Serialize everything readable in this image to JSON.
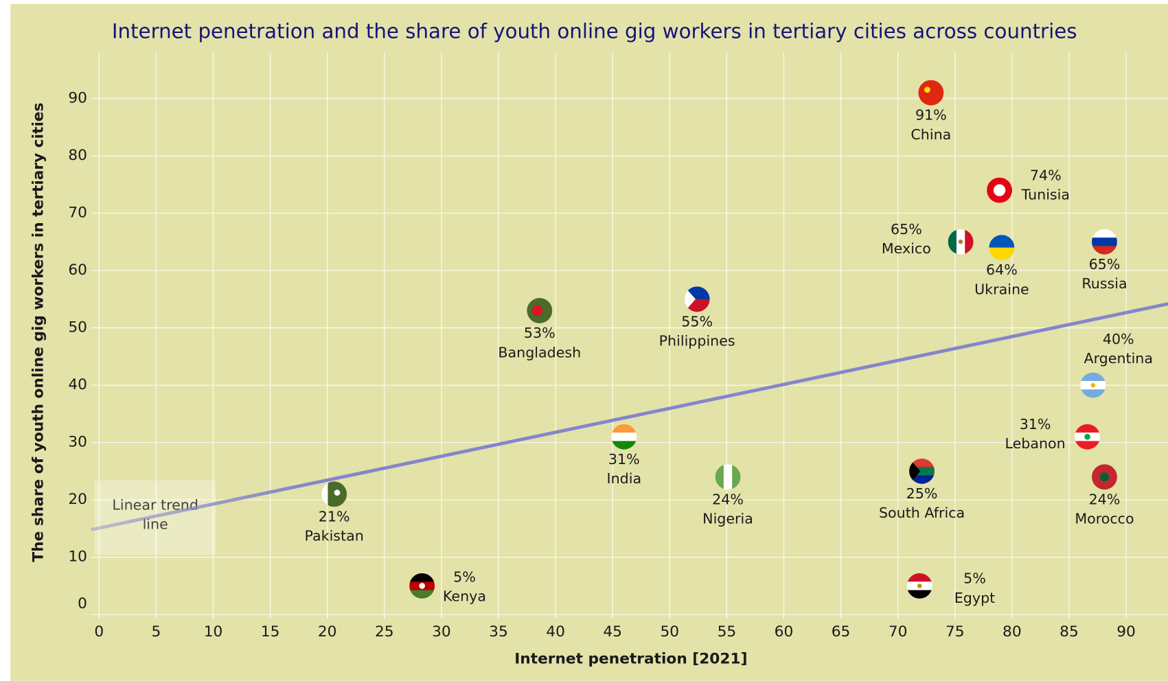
{
  "chart_data": {
    "type": "scatter",
    "title": "Internet penetration and the share of youth online gig workers in tertiary cities across countries",
    "xlabel": "Internet penetration [2021]",
    "ylabel": "The share of youth online gig workers in tertiary cities",
    "labels": [
      "China",
      "Tunisia",
      "Mexico",
      "Ukraine",
      "Russia",
      "Bangladesh",
      "Philippines",
      "Argentina",
      "Lebanon",
      "Morocco",
      "India",
      "Nigeria",
      "South Africa",
      "Pakistan",
      "Kenya",
      "Egypt"
    ],
    "x": [
      72.9,
      78.9,
      75.5,
      79.1,
      88.1,
      38.6,
      52.4,
      87.1,
      86.6,
      88.1,
      46.0,
      55.1,
      72.1,
      20.6,
      28.3,
      71.9
    ],
    "values": [
      91,
      74,
      65,
      64,
      65,
      53,
      55,
      40,
      31,
      24,
      31,
      24,
      25,
      21,
      5,
      5
    ],
    "value_labels": [
      "91%",
      "74%",
      "65%",
      "64%",
      "65%",
      "53%",
      "55%",
      "40%",
      "31%",
      "24%",
      "31%",
      "24%",
      "25%",
      "21%",
      "5%",
      "5%"
    ],
    "trend_line": {
      "x": [
        -0.7,
        93.7
      ],
      "values": [
        14.8,
        54.2
      ]
    },
    "trend_label": "Linear trend line",
    "trend_color": "#8585cc",
    "xlim": [
      -0.7,
      93.7
    ],
    "ylim": [
      0,
      98
    ],
    "xticks": [
      0,
      5,
      10,
      15,
      20,
      25,
      30,
      35,
      40,
      45,
      50,
      55,
      60,
      65,
      70,
      75,
      80,
      85,
      90
    ],
    "yticks": [
      0,
      10,
      20,
      30,
      40,
      50,
      60,
      70,
      80,
      90
    ],
    "grid": true,
    "background": "#e3e2a9"
  }
}
